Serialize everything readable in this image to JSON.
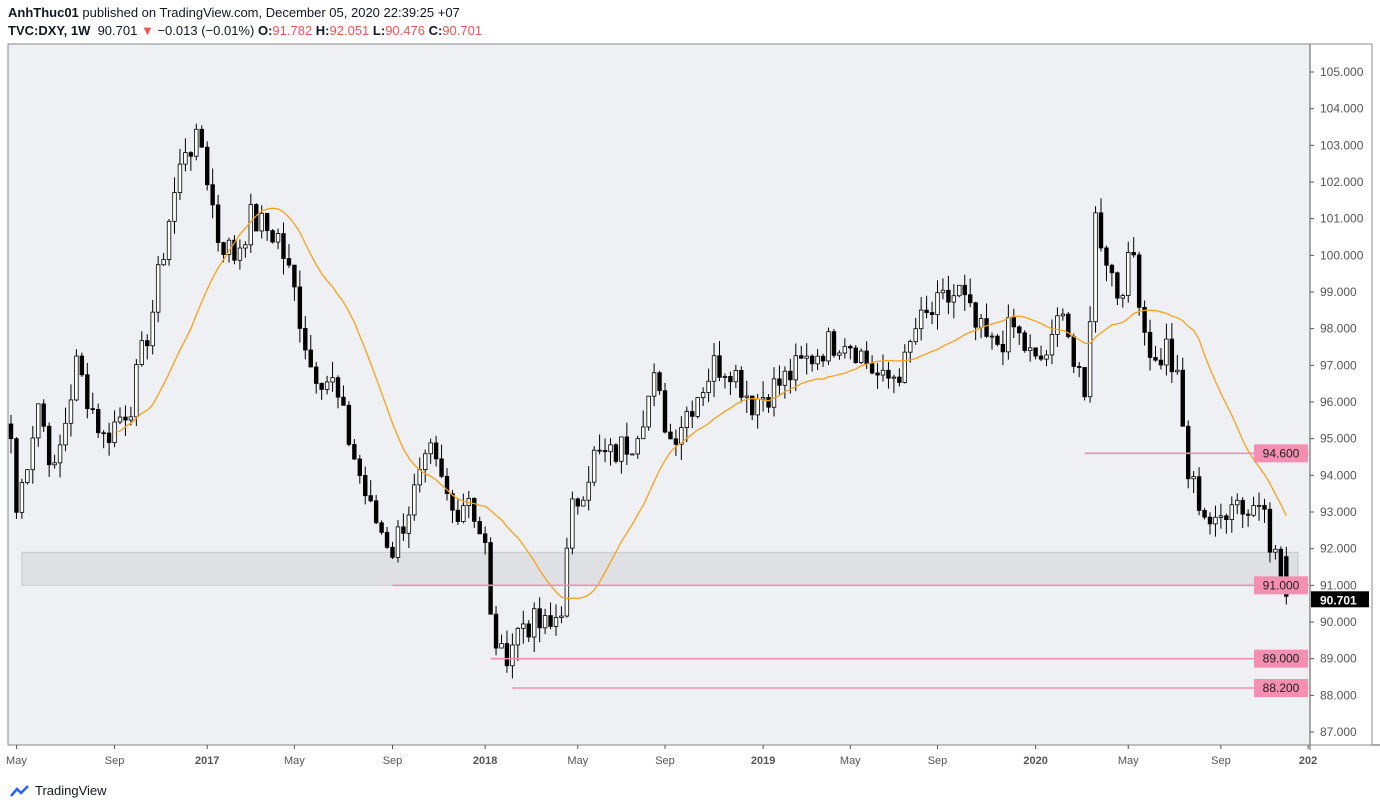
{
  "header": {
    "line1_user": "AnhThuc01",
    "line1_rest": " published on TradingView.com, December 05, 2020 22:39:25 +07",
    "symbol": "TVC:DXY, 1W",
    "last": "90.701",
    "change": "−0.013 (−0.01%)",
    "o_label": "O:",
    "o": "91.782",
    "h_label": "H:",
    "h": "92.051",
    "l_label": "L:",
    "l": "90.476",
    "c_label": "C:",
    "c": "90.701"
  },
  "footer": {
    "brand": "TradingView"
  },
  "colors": {
    "up": "#ffffff",
    "down": "#000000",
    "ma": "#f7a21b",
    "level": "#f48fb1",
    "zone": "#dfe0e4",
    "bg": "#eef0f4"
  },
  "chart_data": {
    "type": "candlestick",
    "timeframe": "1W",
    "ylim": [
      86.6,
      105.8
    ],
    "y_ticks": [
      87,
      88,
      89,
      90,
      91,
      92,
      93,
      94,
      95,
      96,
      97,
      98,
      99,
      100,
      101,
      102,
      103,
      104,
      105
    ],
    "x_ticks": [
      {
        "label": "May",
        "week": 1
      },
      {
        "label": "Sep",
        "week": 19
      },
      {
        "label": "2017",
        "week": 36
      },
      {
        "label": "May",
        "week": 52
      },
      {
        "label": "Sep",
        "week": 70
      },
      {
        "label": "2018",
        "week": 87
      },
      {
        "label": "May",
        "week": 104
      },
      {
        "label": "Sep",
        "week": 120
      },
      {
        "label": "2019",
        "week": 138
      },
      {
        "label": "May",
        "week": 154
      },
      {
        "label": "Sep",
        "week": 170
      },
      {
        "label": "2020",
        "week": 188
      },
      {
        "label": "May",
        "week": 205
      },
      {
        "label": "Sep",
        "week": 222
      },
      {
        "label": "202",
        "week": 238
      }
    ],
    "close_anchors": [
      [
        0,
        95
      ],
      [
        1,
        93
      ],
      [
        5,
        96
      ],
      [
        8,
        94
      ],
      [
        12,
        97
      ],
      [
        17,
        95
      ],
      [
        22,
        96
      ],
      [
        26,
        98.5
      ],
      [
        29,
        101
      ],
      [
        32,
        103
      ],
      [
        35,
        103
      ],
      [
        38,
        100.5
      ],
      [
        41,
        100
      ],
      [
        44,
        101
      ],
      [
        49,
        100.5
      ],
      [
        52,
        99
      ],
      [
        55,
        97
      ],
      [
        59,
        96.5
      ],
      [
        63,
        94.5
      ],
      [
        66,
        93
      ],
      [
        70,
        92
      ],
      [
        74,
        93.5
      ],
      [
        77,
        94.5
      ],
      [
        81,
        93
      ],
      [
        84,
        93.5
      ],
      [
        87,
        92
      ],
      [
        88,
        90
      ],
      [
        90,
        89
      ],
      [
        94,
        90
      ],
      [
        99,
        89.8
      ],
      [
        101,
        90.5
      ],
      [
        103,
        93
      ],
      [
        107,
        94.5
      ],
      [
        110,
        94.5
      ],
      [
        114,
        95
      ],
      [
        118,
        96.5
      ],
      [
        121,
        95
      ],
      [
        125,
        96
      ],
      [
        129,
        97
      ],
      [
        132,
        97
      ],
      [
        136,
        96
      ],
      [
        141,
        96.5
      ],
      [
        145,
        97
      ],
      [
        149,
        97.5
      ],
      [
        153,
        97.8
      ],
      [
        155,
        97.5
      ],
      [
        160,
        96.5
      ],
      [
        164,
        97
      ],
      [
        166,
        98
      ],
      [
        171,
        98.7
      ],
      [
        174,
        99
      ],
      [
        177,
        98
      ],
      [
        180,
        97.5
      ],
      [
        184,
        98
      ],
      [
        188,
        97
      ],
      [
        191,
        97.5
      ],
      [
        193,
        98.8
      ],
      [
        195,
        97
      ],
      [
        197,
        96
      ],
      [
        199,
        101
      ],
      [
        201,
        100
      ],
      [
        203,
        99
      ],
      [
        206,
        100
      ],
      [
        208,
        98
      ],
      [
        210,
        97
      ],
      [
        212,
        97.5
      ],
      [
        214,
        96.5
      ],
      [
        216,
        94
      ],
      [
        219,
        93
      ],
      [
        221,
        92.5
      ],
      [
        224,
        93.5
      ],
      [
        227,
        93
      ],
      [
        230,
        93.5
      ],
      [
        231,
        92.3
      ],
      [
        234,
        90.701
      ]
    ],
    "last_candle": {
      "o": 91.782,
      "h": 92.051,
      "l": 90.476,
      "c": 90.701
    },
    "moving_average": {
      "type": "SMA",
      "period": 20
    },
    "levels": [
      {
        "price": 94.6,
        "label": "94.600",
        "from_week": 197
      },
      {
        "price": 91.0,
        "label": "91.000",
        "from_week": 70
      },
      {
        "price": 89.0,
        "label": "89.000",
        "from_week": 88
      },
      {
        "price": 88.2,
        "label": "88.200",
        "from_week": 92
      }
    ],
    "zone": {
      "low": 91.0,
      "high": 91.9,
      "from_week": 2
    },
    "last_price_label": "90.701"
  }
}
